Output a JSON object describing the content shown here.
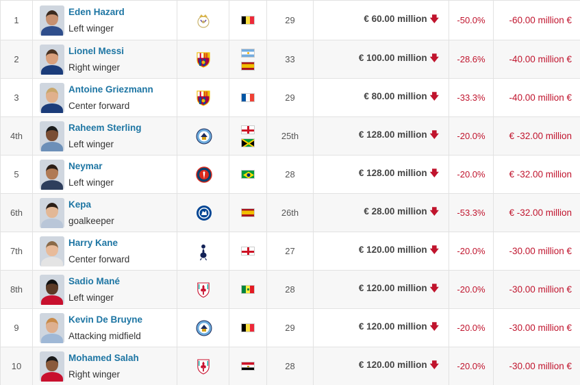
{
  "rows": [
    {
      "rank": "1",
      "name": "Eden Hazard",
      "position": "Left winger",
      "club_icon": "real-madrid-crest-icon",
      "nationality_flags": [
        "belgium-flag-icon"
      ],
      "age": "29",
      "value": "€ 60.00 million",
      "pct": "-50.0%",
      "diff": "-60.00 million €"
    },
    {
      "rank": "2",
      "name": "Lionel Messi",
      "position": "Right winger",
      "club_icon": "fc-barcelona-crest-icon",
      "nationality_flags": [
        "argentina-flag-icon",
        "spain-flag-icon"
      ],
      "age": "33",
      "value": "€ 100.00 million",
      "pct": "-28.6%",
      "diff": "-40.00 million €"
    },
    {
      "rank": "3",
      "name": "Antoine Griezmann",
      "position": "Center forward",
      "club_icon": "fc-barcelona-crest-icon",
      "nationality_flags": [
        "france-flag-icon"
      ],
      "age": "29",
      "value": "€ 80.00 million",
      "pct": "-33.3%",
      "diff": "-40.00 million €"
    },
    {
      "rank": "4th",
      "name": "Raheem Sterling",
      "position": "Left winger",
      "club_icon": "manchester-city-crest-icon",
      "nationality_flags": [
        "england-flag-icon",
        "jamaica-flag-icon"
      ],
      "age": "25th",
      "value": "€ 128.00 million",
      "pct": "-20.0%",
      "diff": "€ -32.00 million"
    },
    {
      "rank": "5",
      "name": "Neymar",
      "position": "Left winger",
      "club_icon": "psg-crest-icon",
      "nationality_flags": [
        "brazil-flag-icon"
      ],
      "age": "28",
      "value": "€ 128.00 million",
      "pct": "-20.0%",
      "diff": "€ -32.00 million"
    },
    {
      "rank": "6th",
      "name": "Kepa",
      "position": "goalkeeper",
      "club_icon": "chelsea-crest-icon",
      "nationality_flags": [
        "spain-flag-icon"
      ],
      "age": "26th",
      "value": "€ 28.00 million",
      "pct": "-53.3%",
      "diff": "€ -32.00 million"
    },
    {
      "rank": "7th",
      "name": "Harry Kane",
      "position": "Center forward",
      "club_icon": "tottenham-crest-icon",
      "nationality_flags": [
        "england-flag-icon"
      ],
      "age": "27",
      "value": "€ 120.00 million",
      "pct": "-20.0%",
      "diff": "-30.00 million €"
    },
    {
      "rank": "8th",
      "name": "Sadio Mané",
      "position": "Left winger",
      "club_icon": "liverpool-crest-icon",
      "nationality_flags": [
        "senegal-flag-icon"
      ],
      "age": "28",
      "value": "€ 120.00 million",
      "pct": "-20.0%",
      "diff": "-30.00 million €"
    },
    {
      "rank": "9",
      "name": "Kevin De Bruyne",
      "position": "Attacking midfield",
      "club_icon": "manchester-city-crest-icon",
      "nationality_flags": [
        "belgium-flag-icon"
      ],
      "age": "29",
      "value": "€ 120.00 million",
      "pct": "-20.0%",
      "diff": "-30.00 million €"
    },
    {
      "rank": "10",
      "name": "Mohamed Salah",
      "position": "Right winger",
      "club_icon": "liverpool-crest-icon",
      "nationality_flags": [
        "egypt-flag-icon"
      ],
      "age": "28",
      "value": "€ 120.00 million",
      "pct": "-20.0%",
      "diff": "-30.00 million €"
    }
  ],
  "icons": {
    "value_trend": "arrow-down-icon"
  },
  "colors": {
    "link": "#1d75a3",
    "negative": "#c0142d",
    "row_alt": "#f7f7f7",
    "border": "#e2e2e2"
  }
}
